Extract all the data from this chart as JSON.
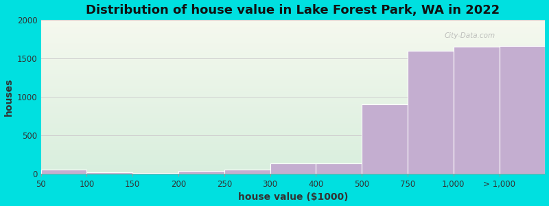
{
  "title": "Distribution of house value in Lake Forest Park, WA in 2022",
  "xlabel": "house value ($1000)",
  "ylabel": "houses",
  "tick_labels": [
    "50",
    "100",
    "150",
    "200",
    "250",
    "300",
    "400",
    "500",
    "750",
    "1,000",
    "> 1,000"
  ],
  "values": [
    50,
    18,
    8,
    35,
    55,
    130,
    130,
    900,
    1600,
    1650,
    1660
  ],
  "bar_color": "#c4aed0",
  "bar_edge_color": "#ffffff",
  "bg_outer": "#00e0e0",
  "grad_top": "#f5f8ee",
  "grad_bottom": "#d8eedd",
  "grid_color": "#d0d0d0",
  "title_fontsize": 13,
  "axis_label_fontsize": 10,
  "tick_fontsize": 8.5,
  "ylim": [
    0,
    2000
  ],
  "yticks": [
    0,
    500,
    1000,
    1500,
    2000
  ],
  "watermark": "City-Data.com"
}
